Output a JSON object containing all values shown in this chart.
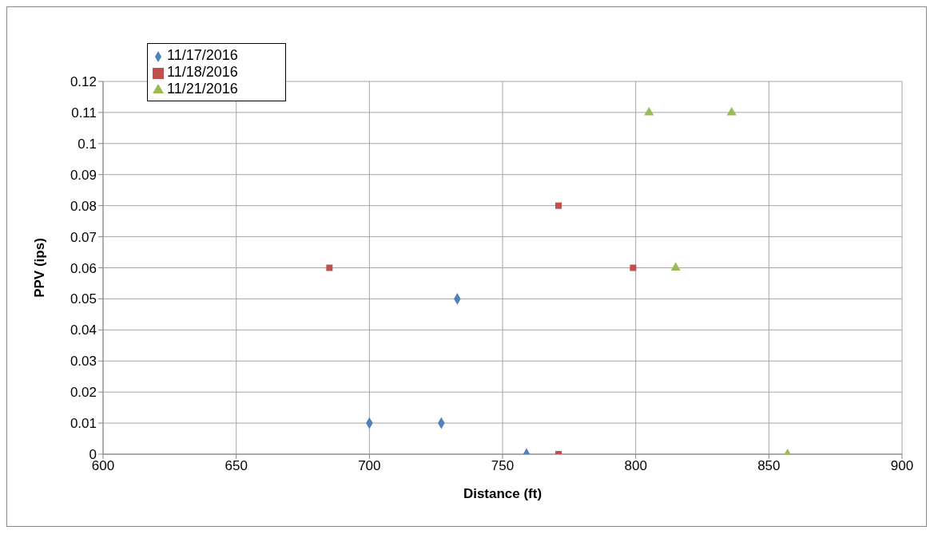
{
  "chart_data": {
    "type": "scatter",
    "xlabel": "Distance (ft)",
    "ylabel": "PPV (ips)",
    "xlim": [
      600,
      900
    ],
    "xticks": [
      600,
      650,
      700,
      750,
      800,
      850,
      900
    ],
    "ylim": [
      0,
      0.12
    ],
    "yticks": [
      0,
      0.01,
      0.02,
      0.03,
      0.04,
      0.05,
      0.06,
      0.07,
      0.08,
      0.09,
      0.1,
      0.11,
      0.12
    ],
    "grid": true,
    "legend": "top left",
    "series": [
      {
        "name": "11/17/2016",
        "color": "#4f81bd",
        "marker": "diamond",
        "x": [
          700,
          727,
          733,
          759
        ],
        "values": [
          0.01,
          0.01,
          0.05,
          0
        ]
      },
      {
        "name": "11/18/2016",
        "color": "#c0504d",
        "marker": "square",
        "x": [
          685,
          771,
          771,
          799
        ],
        "values": [
          0.06,
          0.08,
          0,
          0.06
        ]
      },
      {
        "name": "11/21/2016",
        "color": "#9bbb59",
        "marker": "triangle",
        "x": [
          805,
          815,
          836,
          857
        ],
        "values": [
          0.11,
          0.06,
          0.11,
          0
        ]
      }
    ]
  }
}
